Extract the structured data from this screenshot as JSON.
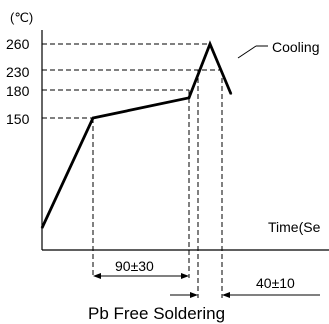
{
  "chart_data": {
    "type": "line",
    "title": "Pb Free Soldering",
    "y_unit": "(℃)",
    "xlabel": "Time(Se",
    "y_ticks": [
      150,
      180,
      230,
      260
    ],
    "series": [
      {
        "points": [
          {
            "t": 0,
            "temp": 60
          },
          {
            "t": 1,
            "temp": 150
          },
          {
            "t": 2,
            "temp": 180
          },
          {
            "t": 3,
            "temp": 260
          },
          {
            "t": 4,
            "temp": 180
          }
        ]
      }
    ],
    "annotations": {
      "cooling": "Cooling",
      "preheat_duration": "90±30",
      "above_230_duration": "40±10"
    }
  },
  "colors": {
    "line": "#000000",
    "background": "#ffffff"
  }
}
